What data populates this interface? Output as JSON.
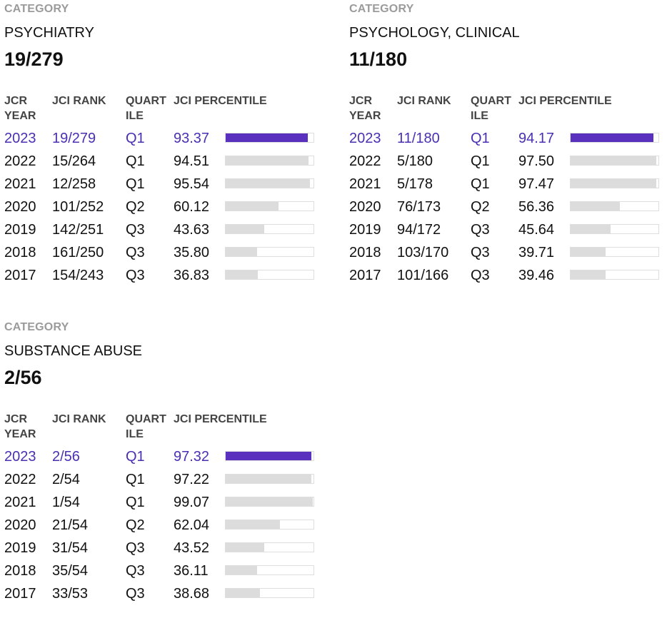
{
  "colors": {
    "current": "#4b2fb3",
    "current_bar": "#5a31be",
    "bar": "#dcdcdc"
  },
  "headers": {
    "year": "JCR YEAR",
    "rank": "JCI RANK",
    "quartile": "QUART ILE",
    "percentile": "JCI PERCENTILE"
  },
  "categories": [
    {
      "label": "CATEGORY",
      "name": "PSYCHIATRY",
      "rank": "19/279",
      "rows": [
        {
          "year": "2023",
          "rank": "19/279",
          "quartile": "Q1",
          "percentile": "93.37",
          "current": true
        },
        {
          "year": "2022",
          "rank": "15/264",
          "quartile": "Q1",
          "percentile": "94.51"
        },
        {
          "year": "2021",
          "rank": "12/258",
          "quartile": "Q1",
          "percentile": "95.54"
        },
        {
          "year": "2020",
          "rank": "101/252",
          "quartile": "Q2",
          "percentile": "60.12"
        },
        {
          "year": "2019",
          "rank": "142/251",
          "quartile": "Q3",
          "percentile": "43.63"
        },
        {
          "year": "2018",
          "rank": "161/250",
          "quartile": "Q3",
          "percentile": "35.80"
        },
        {
          "year": "2017",
          "rank": "154/243",
          "quartile": "Q3",
          "percentile": "36.83"
        }
      ]
    },
    {
      "label": "CATEGORY",
      "name": "PSYCHOLOGY, CLINICAL",
      "rank": "11/180",
      "rows": [
        {
          "year": "2023",
          "rank": "11/180",
          "quartile": "Q1",
          "percentile": "94.17",
          "current": true
        },
        {
          "year": "2022",
          "rank": "5/180",
          "quartile": "Q1",
          "percentile": "97.50"
        },
        {
          "year": "2021",
          "rank": "5/178",
          "quartile": "Q1",
          "percentile": "97.47"
        },
        {
          "year": "2020",
          "rank": "76/173",
          "quartile": "Q2",
          "percentile": "56.36"
        },
        {
          "year": "2019",
          "rank": "94/172",
          "quartile": "Q3",
          "percentile": "45.64"
        },
        {
          "year": "2018",
          "rank": "103/170",
          "quartile": "Q3",
          "percentile": "39.71"
        },
        {
          "year": "2017",
          "rank": "101/166",
          "quartile": "Q3",
          "percentile": "39.46"
        }
      ]
    },
    {
      "label": "CATEGORY",
      "name": "SUBSTANCE ABUSE",
      "rank": "2/56",
      "rows": [
        {
          "year": "2023",
          "rank": "2/56",
          "quartile": "Q1",
          "percentile": "97.32",
          "current": true
        },
        {
          "year": "2022",
          "rank": "2/54",
          "quartile": "Q1",
          "percentile": "97.22"
        },
        {
          "year": "2021",
          "rank": "1/54",
          "quartile": "Q1",
          "percentile": "99.07"
        },
        {
          "year": "2020",
          "rank": "21/54",
          "quartile": "Q2",
          "percentile": "62.04"
        },
        {
          "year": "2019",
          "rank": "31/54",
          "quartile": "Q3",
          "percentile": "43.52"
        },
        {
          "year": "2018",
          "rank": "35/54",
          "quartile": "Q3",
          "percentile": "36.11"
        },
        {
          "year": "2017",
          "rank": "33/53",
          "quartile": "Q3",
          "percentile": "38.68"
        }
      ]
    }
  ]
}
